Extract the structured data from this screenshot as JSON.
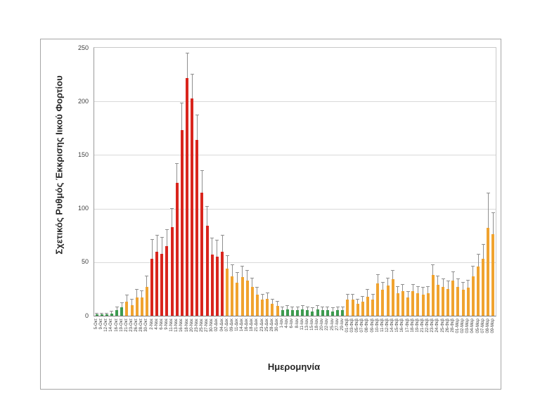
{
  "figure": {
    "background": "#ffffff",
    "border_color": "#a6a6a6"
  },
  "chart_data": {
    "type": "bar",
    "title": "",
    "xlabel": "Ημερομηνία",
    "ylabel": "Σχετικός Ρυθμός Έκκρισης Ιικού Φορτίου",
    "ylim": [
      0,
      250
    ],
    "yticks": [
      0,
      50,
      100,
      150,
      200,
      250
    ],
    "grid": true,
    "legend": "none",
    "error_bars": "upper",
    "categories": [
      "5-Οκτ",
      "9-Οκτ",
      "12-Οκτ",
      "14-Οκτ",
      "16-Οκτ",
      "19-Οκτ",
      "21-Οκτ",
      "23-Οκτ",
      "26-Οκτ",
      "28-Οκτ",
      "30-Οκτ",
      "2-Νοε",
      "4-Νοε",
      "6-Νοε",
      "9-Νοε",
      "11-Νοε",
      "13-Νοε",
      "16-Νοε",
      "18-Νοε",
      "20-Νοε",
      "23-Νοε",
      "25-Νοε",
      "27-Νοε",
      "30-Νοε",
      "02-Δεκ",
      "04-Δεκ",
      "07-Δεκ",
      "09-Δεκ",
      "11-Δεκ",
      "14-Δεκ",
      "16-Δεκ",
      "18-Δεκ",
      "21-Δεκ",
      "23-Δεκ",
      "25-Δεκ",
      "28-Δεκ",
      "30-Δεκ",
      "1-Ιαν",
      "4-Ιαν",
      "6-Ιαν",
      "8-Ιαν",
      "11-Ιαν",
      "13-Ιαν",
      "15-Ιαν",
      "18-Ιαν",
      "20-Ιαν",
      "22-Ιαν",
      "25-Ιαν",
      "27-Ιαν",
      "29-Ιαν",
      "01-Φεβ",
      "03-Φεβ",
      "05-Φεβ",
      "07-Φεβ",
      "08-Φεβ",
      "09-Φεβ",
      "10-Φεβ",
      "11-Φεβ",
      "12-Φεβ",
      "14-Φεβ",
      "15-Φεβ",
      "16-Φεβ",
      "17-Φεβ",
      "18-Φεβ",
      "19-Φεβ",
      "21-Φεβ",
      "22-Φεβ",
      "23-Φεβ",
      "24-Φεβ",
      "25-Φεβ",
      "26-Φεβ",
      "28-Φεβ",
      "01-Μαρ",
      "02-Μαρ",
      "03-Μαρ",
      "04-Μαρ",
      "05-Μαρ",
      "07-Μαρ",
      "08-Μαρ",
      "09-Μαρ"
    ],
    "values": [
      1,
      1,
      1,
      2,
      5,
      8,
      13,
      10,
      17,
      17,
      27,
      53,
      60,
      58,
      65,
      83,
      124,
      173,
      222,
      203,
      164,
      115,
      84,
      57,
      55,
      60,
      44,
      37,
      31,
      36,
      33,
      27,
      20,
      15,
      16,
      11,
      9,
      5,
      6,
      5,
      5,
      6,
      5,
      4,
      6,
      5,
      5,
      4,
      5,
      5,
      15,
      15,
      11,
      13,
      18,
      15,
      30,
      24,
      28,
      34,
      21,
      23,
      17,
      23,
      21,
      20,
      21,
      38,
      29,
      27,
      25,
      33,
      27,
      24,
      26,
      37,
      46,
      53,
      82,
      76
    ],
    "errors_upper": [
      1,
      1,
      1,
      2,
      3,
      4,
      6,
      5,
      7,
      6,
      10,
      18,
      15,
      15,
      15,
      17,
      18,
      25,
      23,
      22,
      23,
      20,
      18,
      15,
      15,
      15,
      12,
      10,
      9,
      10,
      9,
      8,
      6,
      5,
      5,
      4,
      4,
      3,
      3,
      3,
      3,
      3,
      3,
      3,
      3,
      3,
      3,
      3,
      3,
      3,
      5,
      5,
      4,
      5,
      6,
      5,
      8,
      7,
      7,
      8,
      6,
      6,
      5,
      6,
      6,
      6,
      6,
      9,
      8,
      7,
      7,
      8,
      7,
      7,
      7,
      9,
      11,
      13,
      32,
      20
    ],
    "colors": [
      "g",
      "g",
      "g",
      "g",
      "g",
      "g",
      "o",
      "o",
      "o",
      "o",
      "o",
      "r",
      "r",
      "r",
      "r",
      "r",
      "r",
      "r",
      "r",
      "r",
      "r",
      "r",
      "r",
      "r",
      "r",
      "r",
      "o",
      "o",
      "o",
      "o",
      "o",
      "o",
      "o",
      "o",
      "o",
      "o",
      "o",
      "g",
      "g",
      "g",
      "g",
      "g",
      "g",
      "g",
      "g",
      "g",
      "g",
      "g",
      "g",
      "g",
      "o",
      "o",
      "o",
      "o",
      "o",
      "o",
      "o",
      "o",
      "o",
      "o",
      "o",
      "o",
      "o",
      "o",
      "o",
      "o",
      "o",
      "o",
      "o",
      "o",
      "o",
      "o",
      "o",
      "o",
      "o",
      "o",
      "o",
      "o",
      "o",
      "o"
    ],
    "palette": {
      "r": "#d9251d",
      "o": "#f0a32f",
      "g": "#3c9b4f",
      "error": "#8f8f8f",
      "grid": "#d9d9d9",
      "axis": "#7f7f7f",
      "tick_text": "#404040"
    }
  }
}
